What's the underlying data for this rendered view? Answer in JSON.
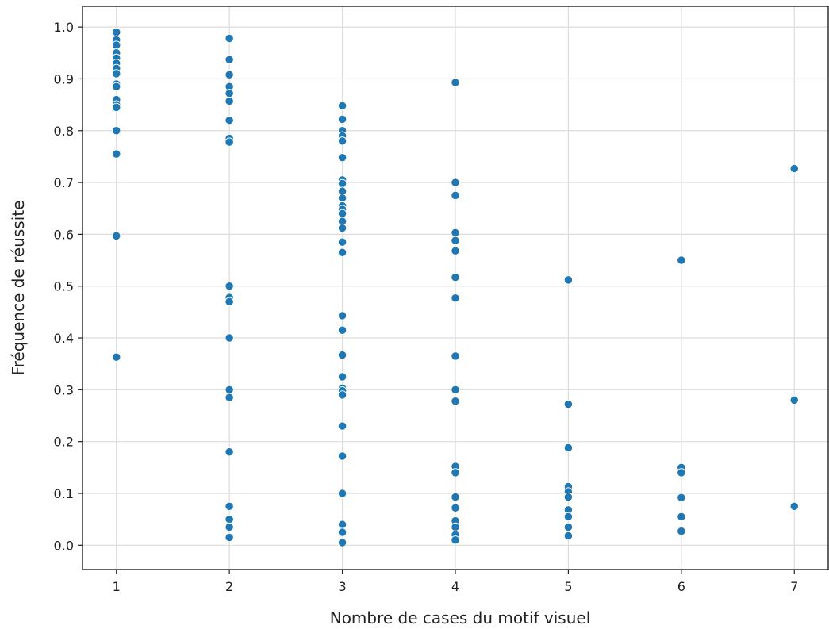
{
  "chart_data": {
    "type": "scatter",
    "title": "",
    "xlabel": "Nombre de cases du motif visuel",
    "ylabel": "Fréquence de réussite",
    "xlim": [
      0.7,
      7.3
    ],
    "ylim": [
      -0.047,
      1.04
    ],
    "xticks": [
      1,
      2,
      3,
      4,
      5,
      6,
      7
    ],
    "yticks": [
      0.0,
      0.1,
      0.2,
      0.3,
      0.4,
      0.5,
      0.6,
      0.7,
      0.8,
      0.9,
      1.0
    ],
    "xtick_labels": [
      "1",
      "2",
      "3",
      "4",
      "5",
      "6",
      "7"
    ],
    "ytick_labels": [
      "0.0",
      "0.1",
      "0.2",
      "0.3",
      "0.4",
      "0.5",
      "0.6",
      "0.7",
      "0.8",
      "0.9",
      "1.0"
    ],
    "grid": true,
    "legend": "none",
    "color": "#1f77b4",
    "points": [
      {
        "x": 1,
        "y": 0.99
      },
      {
        "x": 1,
        "y": 0.975
      },
      {
        "x": 1,
        "y": 0.965
      },
      {
        "x": 1,
        "y": 0.95
      },
      {
        "x": 1,
        "y": 0.94
      },
      {
        "x": 1,
        "y": 0.93
      },
      {
        "x": 1,
        "y": 0.92
      },
      {
        "x": 1,
        "y": 0.91
      },
      {
        "x": 1,
        "y": 0.89
      },
      {
        "x": 1,
        "y": 0.885
      },
      {
        "x": 1,
        "y": 0.86
      },
      {
        "x": 1,
        "y": 0.85
      },
      {
        "x": 1,
        "y": 0.845
      },
      {
        "x": 1,
        "y": 0.8
      },
      {
        "x": 1,
        "y": 0.755
      },
      {
        "x": 1,
        "y": 0.597
      },
      {
        "x": 1,
        "y": 0.363
      },
      {
        "x": 2,
        "y": 0.978
      },
      {
        "x": 2,
        "y": 0.937
      },
      {
        "x": 2,
        "y": 0.908
      },
      {
        "x": 2,
        "y": 0.885
      },
      {
        "x": 2,
        "y": 0.872
      },
      {
        "x": 2,
        "y": 0.857
      },
      {
        "x": 2,
        "y": 0.82
      },
      {
        "x": 2,
        "y": 0.785
      },
      {
        "x": 2,
        "y": 0.778
      },
      {
        "x": 2,
        "y": 0.5
      },
      {
        "x": 2,
        "y": 0.478
      },
      {
        "x": 2,
        "y": 0.47
      },
      {
        "x": 2,
        "y": 0.4
      },
      {
        "x": 2,
        "y": 0.3
      },
      {
        "x": 2,
        "y": 0.285
      },
      {
        "x": 2,
        "y": 0.18
      },
      {
        "x": 2,
        "y": 0.075
      },
      {
        "x": 2,
        "y": 0.05
      },
      {
        "x": 2,
        "y": 0.035
      },
      {
        "x": 2,
        "y": 0.015
      },
      {
        "x": 3,
        "y": 0.848
      },
      {
        "x": 3,
        "y": 0.822
      },
      {
        "x": 3,
        "y": 0.8
      },
      {
        "x": 3,
        "y": 0.79
      },
      {
        "x": 3,
        "y": 0.78
      },
      {
        "x": 3,
        "y": 0.748
      },
      {
        "x": 3,
        "y": 0.705
      },
      {
        "x": 3,
        "y": 0.698
      },
      {
        "x": 3,
        "y": 0.683
      },
      {
        "x": 3,
        "y": 0.67
      },
      {
        "x": 3,
        "y": 0.655
      },
      {
        "x": 3,
        "y": 0.648
      },
      {
        "x": 3,
        "y": 0.64
      },
      {
        "x": 3,
        "y": 0.625
      },
      {
        "x": 3,
        "y": 0.612
      },
      {
        "x": 3,
        "y": 0.585
      },
      {
        "x": 3,
        "y": 0.565
      },
      {
        "x": 3,
        "y": 0.443
      },
      {
        "x": 3,
        "y": 0.415
      },
      {
        "x": 3,
        "y": 0.367
      },
      {
        "x": 3,
        "y": 0.325
      },
      {
        "x": 3,
        "y": 0.303
      },
      {
        "x": 3,
        "y": 0.298
      },
      {
        "x": 3,
        "y": 0.29
      },
      {
        "x": 3,
        "y": 0.23
      },
      {
        "x": 3,
        "y": 0.172
      },
      {
        "x": 3,
        "y": 0.1
      },
      {
        "x": 3,
        "y": 0.04
      },
      {
        "x": 3,
        "y": 0.025
      },
      {
        "x": 3,
        "y": 0.005
      },
      {
        "x": 4,
        "y": 0.893
      },
      {
        "x": 4,
        "y": 0.7
      },
      {
        "x": 4,
        "y": 0.675
      },
      {
        "x": 4,
        "y": 0.603
      },
      {
        "x": 4,
        "y": 0.588
      },
      {
        "x": 4,
        "y": 0.568
      },
      {
        "x": 4,
        "y": 0.517
      },
      {
        "x": 4,
        "y": 0.477
      },
      {
        "x": 4,
        "y": 0.365
      },
      {
        "x": 4,
        "y": 0.3
      },
      {
        "x": 4,
        "y": 0.278
      },
      {
        "x": 4,
        "y": 0.152
      },
      {
        "x": 4,
        "y": 0.14
      },
      {
        "x": 4,
        "y": 0.093
      },
      {
        "x": 4,
        "y": 0.072
      },
      {
        "x": 4,
        "y": 0.047
      },
      {
        "x": 4,
        "y": 0.035
      },
      {
        "x": 4,
        "y": 0.02
      },
      {
        "x": 4,
        "y": 0.01
      },
      {
        "x": 5,
        "y": 0.512
      },
      {
        "x": 5,
        "y": 0.272
      },
      {
        "x": 5,
        "y": 0.188
      },
      {
        "x": 5,
        "y": 0.113
      },
      {
        "x": 5,
        "y": 0.103
      },
      {
        "x": 5,
        "y": 0.093
      },
      {
        "x": 5,
        "y": 0.068
      },
      {
        "x": 5,
        "y": 0.055
      },
      {
        "x": 5,
        "y": 0.035
      },
      {
        "x": 5,
        "y": 0.018
      },
      {
        "x": 6,
        "y": 0.55
      },
      {
        "x": 6,
        "y": 0.15
      },
      {
        "x": 6,
        "y": 0.14
      },
      {
        "x": 6,
        "y": 0.092
      },
      {
        "x": 6,
        "y": 0.055
      },
      {
        "x": 6,
        "y": 0.027
      },
      {
        "x": 7,
        "y": 0.727
      },
      {
        "x": 7,
        "y": 0.28
      },
      {
        "x": 7,
        "y": 0.075
      }
    ]
  }
}
